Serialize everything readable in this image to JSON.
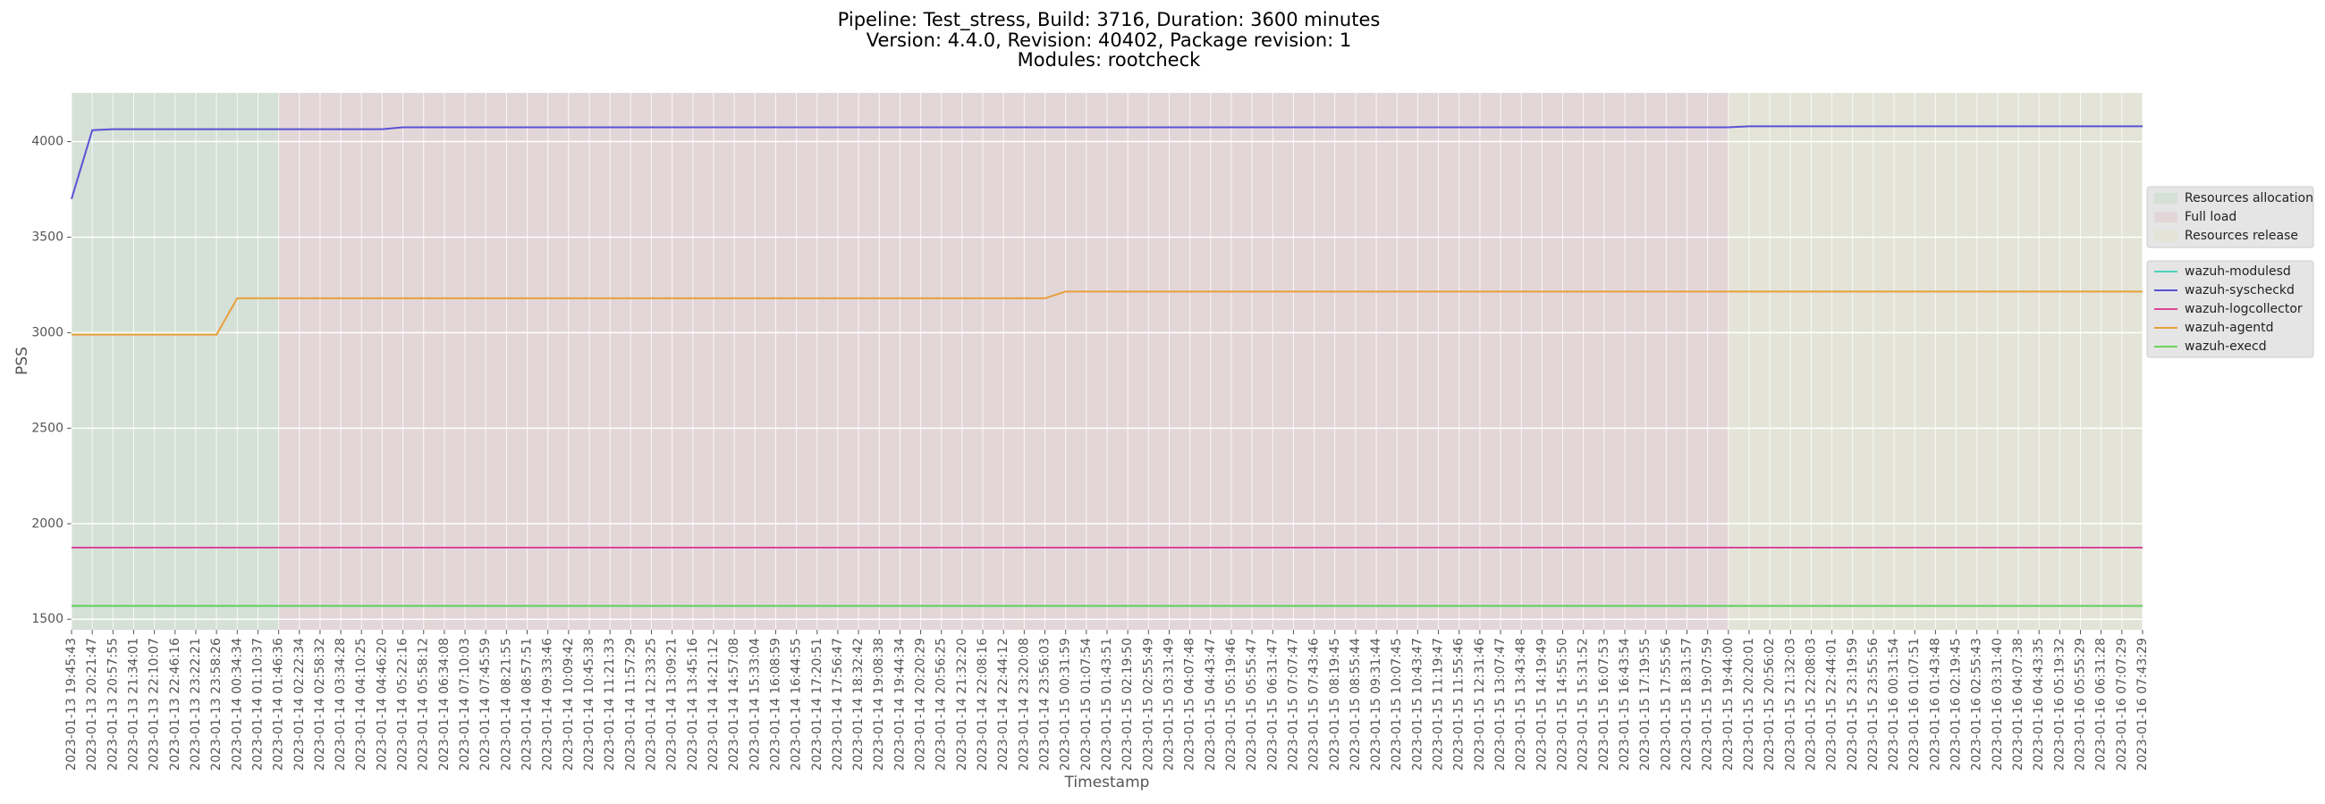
{
  "chart_data": {
    "type": "line",
    "title": [
      "Pipeline: Test_stress, Build: 3716, Duration: 3600 minutes",
      "Version: 4.4.0, Revision: 40402, Package revision: 1",
      "Modules: rootcheck"
    ],
    "xlabel": "Timestamp",
    "ylabel": "PSS",
    "categories": [
      "2023-01-13 19:45:43",
      "2023-01-13 20:21:47",
      "2023-01-13 20:57:55",
      "2023-01-13 21:34:01",
      "2023-01-13 22:10:07",
      "2023-01-13 22:46:16",
      "2023-01-13 23:22:21",
      "2023-01-13 23:58:26",
      "2023-01-14 00:34:34",
      "2023-01-14 01:10:37",
      "2023-01-14 01:46:36",
      "2023-01-14 02:22:34",
      "2023-01-14 02:58:32",
      "2023-01-14 03:34:28",
      "2023-01-14 04:10:25",
      "2023-01-14 04:46:20",
      "2023-01-14 05:22:16",
      "2023-01-14 05:58:12",
      "2023-01-14 06:34:08",
      "2023-01-14 07:10:03",
      "2023-01-14 07:45:59",
      "2023-01-14 08:21:55",
      "2023-01-14 08:57:51",
      "2023-01-14 09:33:46",
      "2023-01-14 10:09:42",
      "2023-01-14 10:45:38",
      "2023-01-14 11:21:33",
      "2023-01-14 11:57:29",
      "2023-01-14 12:33:25",
      "2023-01-14 13:09:21",
      "2023-01-14 13:45:16",
      "2023-01-14 14:21:12",
      "2023-01-14 14:57:08",
      "2023-01-14 15:33:04",
      "2023-01-14 16:08:59",
      "2023-01-14 16:44:55",
      "2023-01-14 17:20:51",
      "2023-01-14 17:56:47",
      "2023-01-14 18:32:42",
      "2023-01-14 19:08:38",
      "2023-01-14 19:44:34",
      "2023-01-14 20:20:29",
      "2023-01-14 20:56:25",
      "2023-01-14 21:32:20",
      "2023-01-14 22:08:16",
      "2023-01-14 22:44:12",
      "2023-01-14 23:20:08",
      "2023-01-14 23:56:03",
      "2023-01-15 00:31:59",
      "2023-01-15 01:07:54",
      "2023-01-15 01:43:51",
      "2023-01-15 02:19:50",
      "2023-01-15 02:55:49",
      "2023-01-15 03:31:49",
      "2023-01-15 04:07:48",
      "2023-01-15 04:43:47",
      "2023-01-15 05:19:46",
      "2023-01-15 05:55:47",
      "2023-01-15 06:31:47",
      "2023-01-15 07:07:47",
      "2023-01-15 07:43:46",
      "2023-01-15 08:19:45",
      "2023-01-15 08:55:44",
      "2023-01-15 09:31:44",
      "2023-01-15 10:07:45",
      "2023-01-15 10:43:47",
      "2023-01-15 11:19:47",
      "2023-01-15 11:55:46",
      "2023-01-15 12:31:46",
      "2023-01-15 13:07:47",
      "2023-01-15 13:43:48",
      "2023-01-15 14:19:49",
      "2023-01-15 14:55:50",
      "2023-01-15 15:31:52",
      "2023-01-15 16:07:53",
      "2023-01-15 16:43:54",
      "2023-01-15 17:19:55",
      "2023-01-15 17:55:56",
      "2023-01-15 18:31:57",
      "2023-01-15 19:07:59",
      "2023-01-15 19:44:00",
      "2023-01-15 20:20:01",
      "2023-01-15 20:56:02",
      "2023-01-15 21:32:03",
      "2023-01-15 22:08:03",
      "2023-01-15 22:44:01",
      "2023-01-15 23:19:59",
      "2023-01-15 23:55:56",
      "2023-01-16 00:31:54",
      "2023-01-16 01:07:51",
      "2023-01-16 01:43:48",
      "2023-01-16 02:19:45",
      "2023-01-16 02:55:43",
      "2023-01-16 03:31:40",
      "2023-01-16 04:07:38",
      "2023-01-16 04:43:35",
      "2023-01-16 05:19:32",
      "2023-01-16 05:55:29",
      "2023-01-16 06:31:28",
      "2023-01-16 07:07:29",
      "2023-01-16 07:43:29"
    ],
    "regions": [
      {
        "name": "Resources allocation",
        "color": "#d5e0d6",
        "start": "2023-01-13 19:45:43",
        "end": "2023-01-14 01:46:36"
      },
      {
        "name": "Full load",
        "color": "#e3d6d8",
        "start": "2023-01-14 01:46:36",
        "end": "2023-01-15 19:44:00"
      },
      {
        "name": "Resources release",
        "color": "#e3e4d7",
        "start": "2023-01-15 19:44:00",
        "end": "2023-01-16 07:43:29"
      }
    ],
    "series": [
      {
        "name": "wazuh-modulesd",
        "color": "#4fcfbf",
        "values": [
          1570,
          1570,
          1570,
          1570,
          1570,
          1570,
          1570,
          1570,
          1570,
          1570,
          1570,
          1570,
          1570,
          1570,
          1570,
          1570,
          1570,
          1570,
          1570,
          1570,
          1570,
          1570,
          1570,
          1570,
          1570,
          1570,
          1570,
          1570,
          1570,
          1570,
          1570,
          1570,
          1570,
          1570,
          1570,
          1570,
          1570,
          1570,
          1570,
          1570,
          1570,
          1570,
          1570,
          1570,
          1570,
          1570,
          1570,
          1570,
          1570,
          1570,
          1570,
          1570,
          1570,
          1570,
          1570,
          1570,
          1570,
          1570,
          1570,
          1570,
          1570,
          1570,
          1570,
          1570,
          1570,
          1570,
          1570,
          1570,
          1570,
          1570,
          1570,
          1570,
          1570,
          1570,
          1570,
          1570,
          1570,
          1570,
          1570,
          1570,
          1570,
          1570,
          1570,
          1570,
          1570,
          1570,
          1570,
          1570,
          1570,
          1570,
          1570,
          1570,
          1570,
          1570,
          1570,
          1570,
          1570,
          1570,
          1570,
          1570,
          1570
        ]
      },
      {
        "name": "wazuh-syscheckd",
        "color": "#5a52d6",
        "values": [
          3700,
          4060,
          4065,
          4065,
          4065,
          4065,
          4065,
          4065,
          4065,
          4065,
          4065,
          4065,
          4065,
          4065,
          4065,
          4065,
          4075,
          4075,
          4075,
          4075,
          4075,
          4075,
          4075,
          4075,
          4075,
          4075,
          4075,
          4075,
          4075,
          4075,
          4075,
          4075,
          4075,
          4075,
          4075,
          4075,
          4075,
          4075,
          4075,
          4075,
          4075,
          4075,
          4075,
          4075,
          4075,
          4075,
          4075,
          4075,
          4075,
          4075,
          4075,
          4075,
          4075,
          4075,
          4075,
          4075,
          4075,
          4075,
          4075,
          4075,
          4075,
          4075,
          4075,
          4075,
          4075,
          4075,
          4075,
          4075,
          4075,
          4075,
          4075,
          4075,
          4075,
          4075,
          4075,
          4075,
          4075,
          4075,
          4075,
          4075,
          4075,
          4080,
          4080,
          4080,
          4080,
          4080,
          4080,
          4080,
          4080,
          4080,
          4080,
          4080,
          4080,
          4080,
          4080,
          4080,
          4080,
          4080,
          4080,
          4080,
          4080
        ]
      },
      {
        "name": "wazuh-logcollector",
        "color": "#d9479b",
        "values": [
          1875,
          1875,
          1875,
          1875,
          1875,
          1875,
          1875,
          1875,
          1875,
          1875,
          1875,
          1875,
          1875,
          1875,
          1875,
          1875,
          1875,
          1875,
          1875,
          1875,
          1875,
          1875,
          1875,
          1875,
          1875,
          1875,
          1875,
          1875,
          1875,
          1875,
          1875,
          1875,
          1875,
          1875,
          1875,
          1875,
          1875,
          1875,
          1875,
          1875,
          1875,
          1875,
          1875,
          1875,
          1875,
          1875,
          1875,
          1875,
          1875,
          1875,
          1875,
          1875,
          1875,
          1875,
          1875,
          1875,
          1875,
          1875,
          1875,
          1875,
          1875,
          1875,
          1875,
          1875,
          1875,
          1875,
          1875,
          1875,
          1875,
          1875,
          1875,
          1875,
          1875,
          1875,
          1875,
          1875,
          1875,
          1875,
          1875,
          1875,
          1875,
          1875,
          1875,
          1875,
          1875,
          1875,
          1875,
          1875,
          1875,
          1875,
          1875,
          1875,
          1875,
          1875,
          1875,
          1875,
          1875,
          1875,
          1875,
          1875,
          1875
        ]
      },
      {
        "name": "wazuh-agentd",
        "color": "#e8a03a",
        "values": [
          2990,
          2990,
          2990,
          2990,
          2990,
          2990,
          2990,
          2990,
          3180,
          3180,
          3180,
          3180,
          3180,
          3180,
          3180,
          3180,
          3180,
          3180,
          3180,
          3180,
          3180,
          3180,
          3180,
          3180,
          3180,
          3180,
          3180,
          3180,
          3180,
          3180,
          3180,
          3180,
          3180,
          3180,
          3180,
          3180,
          3180,
          3180,
          3180,
          3180,
          3180,
          3180,
          3180,
          3180,
          3180,
          3180,
          3180,
          3180,
          3215,
          3215,
          3215,
          3215,
          3215,
          3215,
          3215,
          3215,
          3215,
          3215,
          3215,
          3215,
          3215,
          3215,
          3215,
          3215,
          3215,
          3215,
          3215,
          3215,
          3215,
          3215,
          3215,
          3215,
          3215,
          3215,
          3215,
          3215,
          3215,
          3215,
          3215,
          3215,
          3215,
          3215,
          3215,
          3215,
          3215,
          3215,
          3215,
          3215,
          3215,
          3215,
          3215,
          3215,
          3215,
          3215,
          3215,
          3215,
          3215,
          3215,
          3215,
          3215,
          3215
        ]
      },
      {
        "name": "wazuh-execd",
        "color": "#6fd160",
        "values": [
          1570,
          1570,
          1570,
          1570,
          1570,
          1570,
          1570,
          1570,
          1570,
          1570,
          1570,
          1570,
          1570,
          1570,
          1570,
          1570,
          1570,
          1570,
          1570,
          1570,
          1570,
          1570,
          1570,
          1570,
          1570,
          1570,
          1570,
          1570,
          1570,
          1570,
          1570,
          1570,
          1570,
          1570,
          1570,
          1570,
          1570,
          1570,
          1570,
          1570,
          1570,
          1570,
          1570,
          1570,
          1570,
          1570,
          1570,
          1570,
          1570,
          1570,
          1570,
          1570,
          1570,
          1570,
          1570,
          1570,
          1570,
          1570,
          1570,
          1570,
          1570,
          1570,
          1570,
          1570,
          1570,
          1570,
          1570,
          1570,
          1570,
          1570,
          1570,
          1570,
          1570,
          1570,
          1570,
          1570,
          1570,
          1570,
          1570,
          1570,
          1570,
          1570,
          1570,
          1570,
          1570,
          1570,
          1570,
          1570,
          1570,
          1570,
          1570,
          1570,
          1570,
          1570,
          1570,
          1570,
          1570,
          1570,
          1570,
          1570,
          1570
        ]
      }
    ],
    "ylim": [
      1445,
      4255
    ],
    "yticks": [
      1500,
      2000,
      2500,
      3000,
      3500,
      4000
    ],
    "grid": true,
    "legend": "outside right"
  }
}
